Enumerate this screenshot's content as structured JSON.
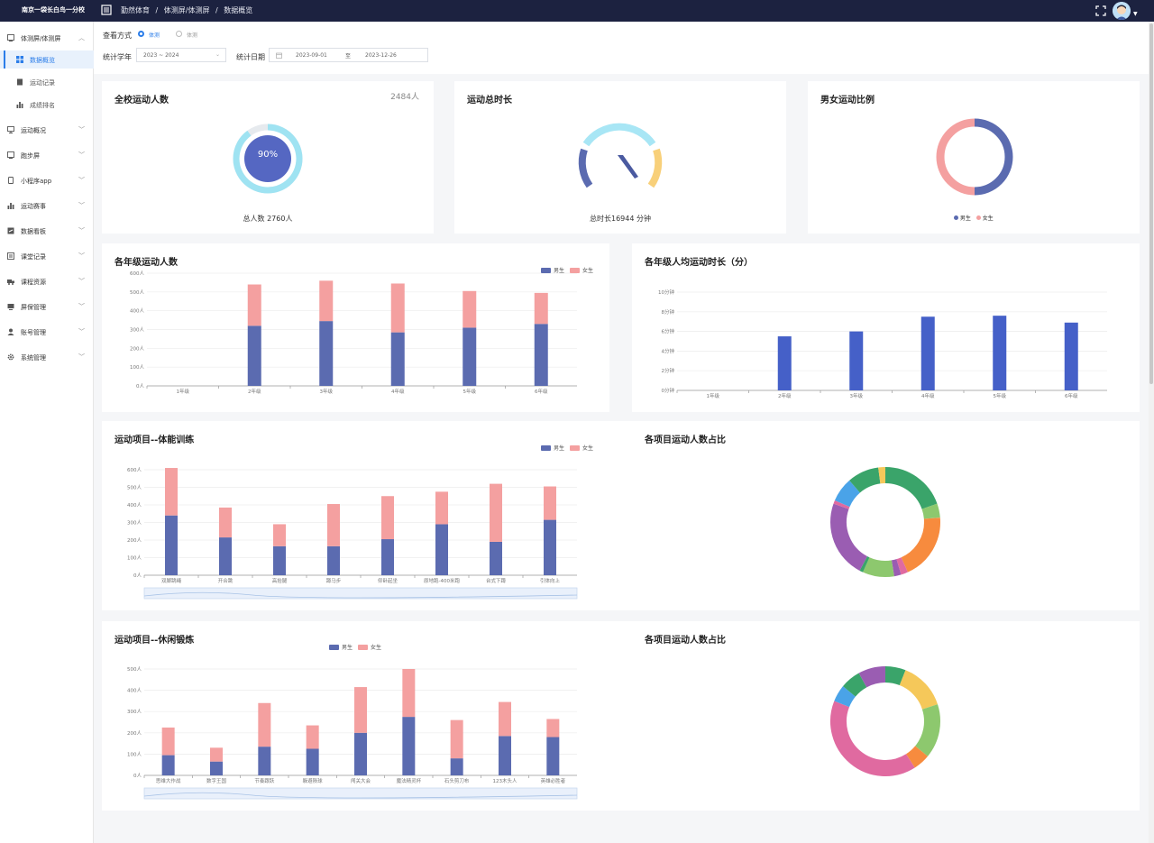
{
  "header": {
    "school_name": "南京一袋长白鸟一分校",
    "breadcrumb": [
      "勤然体育",
      "体测屏/体测屏",
      "数据概览"
    ],
    "separator": "/"
  },
  "sidebar": {
    "items": [
      {
        "label": "体测屏/体测屏",
        "icon": "screen-icon",
        "expanded": true
      },
      {
        "label": "数据概览",
        "icon": "grid-icon",
        "sub": true,
        "active": true
      },
      {
        "label": "运动记录",
        "icon": "record-icon",
        "sub": true
      },
      {
        "label": "成绩排名",
        "icon": "bar-chart-icon",
        "sub": true
      },
      {
        "label": "运动概况",
        "icon": "monitor-icon"
      },
      {
        "label": "跑步屏",
        "icon": "screen-icon"
      },
      {
        "label": "小程序app",
        "icon": "phone-icon"
      },
      {
        "label": "运动赛事",
        "icon": "bar-chart-icon"
      },
      {
        "label": "数据看板",
        "icon": "board-icon"
      },
      {
        "label": "课堂记录",
        "icon": "note-icon"
      },
      {
        "label": "课程资源",
        "icon": "truck-icon"
      },
      {
        "label": "屏保管理",
        "icon": "tv-icon"
      },
      {
        "label": "账号管理",
        "icon": "user-icon"
      },
      {
        "label": "系统管理",
        "icon": "gear-icon"
      }
    ]
  },
  "filters": {
    "view_label": "查看方式",
    "view_options": [
      "体测",
      "体测"
    ],
    "year_label": "统计学年",
    "year_value": "2023 ~ 2024",
    "date_label": "统计日期",
    "date_start": "2023-09-01",
    "date_sep": "至",
    "date_end": "2023-12-26"
  },
  "colors": {
    "male": "#5b6bb0",
    "female": "#f4a0a0",
    "bar_blue": "#4560c8",
    "accent": "#2b7de9"
  },
  "cards": {
    "school_count": {
      "title": "全校运动人数",
      "count": "2484人",
      "percent": "90%",
      "percent_value": 90,
      "total": "总人数 2760人"
    },
    "duration": {
      "title": "运动总时长",
      "total": "总时长16944 分钟"
    },
    "gender_ratio": {
      "title": "男女运动比例",
      "legend": [
        "男生",
        "女生"
      ],
      "male_share": 0.5,
      "female_share": 0.5
    },
    "grade_count": {
      "title": "各年级运动人数",
      "legend": [
        "男生",
        "女生"
      ]
    },
    "grade_avg": {
      "title": "各年级人均运动时长（分）"
    },
    "fitness": {
      "title": "运动项目--体能训练",
      "legend": [
        "男生",
        "女生"
      ]
    },
    "fitness_pie": {
      "title": "各项目运动人数占比"
    },
    "leisure": {
      "title": "运动项目--休闲锻炼",
      "legend": [
        "男生",
        "女生"
      ]
    },
    "leisure_pie": {
      "title": "各项目运动人数占比"
    }
  },
  "chart_data": [
    {
      "type": "bar",
      "id": "grade-count",
      "stacked": true,
      "categories": [
        "1年级",
        "2年级",
        "3年级",
        "4年级",
        "5年级",
        "6年级"
      ],
      "series": [
        {
          "name": "男生",
          "values": [
            0,
            320,
            345,
            285,
            310,
            330
          ]
        },
        {
          "name": "女生",
          "values": [
            0,
            220,
            215,
            260,
            195,
            165
          ]
        }
      ],
      "ylim": [
        0,
        600
      ],
      "yticks": [
        "0人",
        "100人",
        "200人",
        "300人",
        "400人",
        "500人",
        "600人"
      ]
    },
    {
      "type": "bar",
      "id": "grade-avg",
      "categories": [
        "1年级",
        "2年级",
        "3年级",
        "4年级",
        "5年级",
        "6年级"
      ],
      "values": [
        0,
        5.5,
        6,
        7.5,
        7.6,
        6.9
      ],
      "ylim": [
        0,
        10
      ],
      "yticks": [
        "0分钟",
        "2分钟",
        "4分钟",
        "6分钟",
        "8分钟",
        "10分钟"
      ]
    },
    {
      "type": "bar",
      "id": "fitness",
      "stacked": true,
      "categories": [
        "双脚跳绳",
        "开合跳",
        "高抬腿",
        "蹲马步",
        "仰卧起坐",
        "原地跑-400米跑",
        "台式下蹲",
        "引体向上"
      ],
      "series": [
        {
          "name": "男生",
          "values": [
            340,
            215,
            165,
            165,
            205,
            290,
            190,
            315
          ]
        },
        {
          "name": "女生",
          "values": [
            270,
            170,
            125,
            240,
            245,
            185,
            330,
            190
          ]
        }
      ],
      "ylim": [
        0,
        600
      ],
      "yticks": [
        "0人",
        "100人",
        "200人",
        "300人",
        "400人",
        "500人",
        "600人"
      ]
    },
    {
      "type": "pie",
      "id": "fitness-pie",
      "donut": true,
      "slices": [
        {
          "color": "#3aa46a",
          "value": 19
        },
        {
          "color": "#8dc86e",
          "value": 4
        },
        {
          "color": "#f78b3e",
          "value": 19
        },
        {
          "color": "#e06aa0",
          "value": 2
        },
        {
          "color": "#9a5db2",
          "value": 2
        },
        {
          "color": "#8dc86e",
          "value": 9
        },
        {
          "color": "#3aa46a",
          "value": 1
        },
        {
          "color": "#9a5db2",
          "value": 22
        },
        {
          "color": "#e06aa0",
          "value": 1
        },
        {
          "color": "#4aa3e8",
          "value": 7
        },
        {
          "color": "#3aa46a",
          "value": 9
        },
        {
          "color": "#f5c85a",
          "value": 2
        }
      ]
    },
    {
      "type": "bar",
      "id": "leisure",
      "stacked": true,
      "categories": [
        "思维大作战",
        "数字王国",
        "节奏跟跃",
        "躲避陨球",
        "闯关大会",
        "魔法精灵杯",
        "石头剪刀布",
        "123木头人",
        "英雄必胜者"
      ],
      "series": [
        {
          "name": "男生",
          "values": [
            95,
            65,
            135,
            125,
            200,
            275,
            80,
            185,
            180
          ]
        },
        {
          "name": "女生",
          "values": [
            130,
            65,
            205,
            110,
            215,
            225,
            180,
            160,
            85
          ]
        }
      ],
      "ylim": [
        0,
        500
      ],
      "yticks": [
        "0人",
        "100人",
        "200人",
        "300人",
        "400人",
        "500人"
      ]
    },
    {
      "type": "pie",
      "id": "leisure-pie",
      "donut": true,
      "slices": [
        {
          "color": "#3aa46a",
          "value": 6
        },
        {
          "color": "#f5c85a",
          "value": 14
        },
        {
          "color": "#8dc86e",
          "value": 16
        },
        {
          "color": "#f78b3e",
          "value": 5
        },
        {
          "color": "#e06aa0",
          "value": 40
        },
        {
          "color": "#4aa3e8",
          "value": 5
        },
        {
          "color": "#3aa46a",
          "value": 6
        },
        {
          "color": "#9a5db2",
          "value": 8
        }
      ]
    }
  ]
}
